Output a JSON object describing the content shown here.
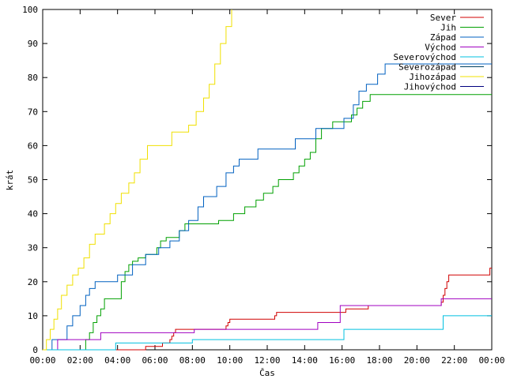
{
  "chart_data": {
    "type": "line",
    "title": "",
    "xlabel": "Čas",
    "ylabel": "krát",
    "xlim": [
      0,
      24
    ],
    "ylim": [
      0,
      100
    ],
    "x_unit": "hours",
    "x_ticks": [
      {
        "value": 0,
        "label": "00:00"
      },
      {
        "value": 2,
        "label": "02:00"
      },
      {
        "value": 4,
        "label": "04:00"
      },
      {
        "value": 6,
        "label": "06:00"
      },
      {
        "value": 8,
        "label": "08:00"
      },
      {
        "value": 10,
        "label": "10:00"
      },
      {
        "value": 12,
        "label": "12:00"
      },
      {
        "value": 14,
        "label": "14:00"
      },
      {
        "value": 16,
        "label": "16:00"
      },
      {
        "value": 18,
        "label": "18:00"
      },
      {
        "value": 20,
        "label": "20:00"
      },
      {
        "value": 22,
        "label": "22:00"
      },
      {
        "value": 24,
        "label": "00:00"
      }
    ],
    "y_ticks": [
      0,
      10,
      20,
      30,
      40,
      50,
      60,
      70,
      80,
      90,
      100
    ],
    "grid": false,
    "legend_position": "top-right",
    "step": true,
    "series": [
      {
        "name": "Sever",
        "color": "#d00000",
        "points": [
          [
            0,
            0
          ],
          [
            5.5,
            0
          ],
          [
            5.5,
            1
          ],
          [
            6.4,
            1
          ],
          [
            6.4,
            2
          ],
          [
            6.8,
            2
          ],
          [
            6.8,
            3
          ],
          [
            6.9,
            3
          ],
          [
            6.9,
            4
          ],
          [
            7,
            4
          ],
          [
            7,
            5
          ],
          [
            7.1,
            5
          ],
          [
            7.1,
            6
          ],
          [
            9.8,
            6
          ],
          [
            9.8,
            7
          ],
          [
            9.9,
            7
          ],
          [
            9.9,
            8
          ],
          [
            10,
            8
          ],
          [
            10,
            9
          ],
          [
            12.4,
            9
          ],
          [
            12.4,
            10
          ],
          [
            12.5,
            10
          ],
          [
            12.5,
            11
          ],
          [
            16.2,
            11
          ],
          [
            16.2,
            12
          ],
          [
            17.4,
            12
          ],
          [
            17.4,
            13
          ],
          [
            21.3,
            13
          ],
          [
            21.3,
            14
          ],
          [
            21.4,
            14
          ],
          [
            21.4,
            16
          ],
          [
            21.5,
            16
          ],
          [
            21.5,
            18
          ],
          [
            21.6,
            18
          ],
          [
            21.6,
            20
          ],
          [
            21.7,
            20
          ],
          [
            21.7,
            22
          ],
          [
            23.9,
            22
          ],
          [
            23.9,
            24
          ],
          [
            24,
            24
          ]
        ]
      },
      {
        "name": "Jih",
        "color": "#00a000",
        "points": [
          [
            0,
            0
          ],
          [
            2.3,
            0
          ],
          [
            2.3,
            3
          ],
          [
            2.5,
            3
          ],
          [
            2.5,
            5
          ],
          [
            2.7,
            5
          ],
          [
            2.7,
            8
          ],
          [
            2.9,
            8
          ],
          [
            2.9,
            10
          ],
          [
            3.1,
            10
          ],
          [
            3.1,
            12
          ],
          [
            3.3,
            12
          ],
          [
            3.3,
            15
          ],
          [
            4.2,
            15
          ],
          [
            4.2,
            20
          ],
          [
            4.4,
            20
          ],
          [
            4.4,
            23
          ],
          [
            4.6,
            23
          ],
          [
            4.6,
            25
          ],
          [
            4.8,
            25
          ],
          [
            4.8,
            26
          ],
          [
            5.1,
            26
          ],
          [
            5.1,
            27
          ],
          [
            5.5,
            27
          ],
          [
            5.5,
            28
          ],
          [
            6.1,
            28
          ],
          [
            6.1,
            30
          ],
          [
            6.3,
            30
          ],
          [
            6.3,
            32
          ],
          [
            6.6,
            32
          ],
          [
            6.6,
            33
          ],
          [
            7.3,
            33
          ],
          [
            7.3,
            35
          ],
          [
            7.6,
            35
          ],
          [
            7.6,
            37
          ],
          [
            9.4,
            37
          ],
          [
            9.4,
            38
          ],
          [
            10.2,
            38
          ],
          [
            10.2,
            40
          ],
          [
            10.8,
            40
          ],
          [
            10.8,
            42
          ],
          [
            11.4,
            42
          ],
          [
            11.4,
            44
          ],
          [
            11.8,
            44
          ],
          [
            11.8,
            46
          ],
          [
            12.3,
            46
          ],
          [
            12.3,
            48
          ],
          [
            12.6,
            48
          ],
          [
            12.6,
            50
          ],
          [
            13.4,
            50
          ],
          [
            13.4,
            52
          ],
          [
            13.7,
            52
          ],
          [
            13.7,
            54
          ],
          [
            14,
            54
          ],
          [
            14,
            56
          ],
          [
            14.3,
            56
          ],
          [
            14.3,
            58
          ],
          [
            14.6,
            58
          ],
          [
            14.6,
            62
          ],
          [
            14.9,
            62
          ],
          [
            14.9,
            65
          ],
          [
            15.5,
            65
          ],
          [
            15.5,
            67
          ],
          [
            16.5,
            67
          ],
          [
            16.5,
            69
          ],
          [
            16.8,
            69
          ],
          [
            16.8,
            71
          ],
          [
            17.1,
            71
          ],
          [
            17.1,
            73
          ],
          [
            17.5,
            73
          ],
          [
            17.5,
            75
          ],
          [
            24,
            75
          ]
        ]
      },
      {
        "name": "Západ",
        "color": "#0060c0",
        "points": [
          [
            0,
            0
          ],
          [
            0.5,
            0
          ],
          [
            0.5,
            3
          ],
          [
            1.3,
            3
          ],
          [
            1.3,
            7
          ],
          [
            1.6,
            7
          ],
          [
            1.6,
            10
          ],
          [
            2,
            10
          ],
          [
            2,
            13
          ],
          [
            2.3,
            13
          ],
          [
            2.3,
            16
          ],
          [
            2.5,
            16
          ],
          [
            2.5,
            18
          ],
          [
            2.8,
            18
          ],
          [
            2.8,
            20
          ],
          [
            4,
            20
          ],
          [
            4,
            22
          ],
          [
            4.8,
            22
          ],
          [
            4.8,
            25
          ],
          [
            5.5,
            25
          ],
          [
            5.5,
            28
          ],
          [
            6.2,
            28
          ],
          [
            6.2,
            30
          ],
          [
            6.8,
            30
          ],
          [
            6.8,
            32
          ],
          [
            7.3,
            32
          ],
          [
            7.3,
            35
          ],
          [
            7.8,
            35
          ],
          [
            7.8,
            38
          ],
          [
            8.3,
            38
          ],
          [
            8.3,
            42
          ],
          [
            8.6,
            42
          ],
          [
            8.6,
            45
          ],
          [
            9.3,
            45
          ],
          [
            9.3,
            48
          ],
          [
            9.8,
            48
          ],
          [
            9.8,
            52
          ],
          [
            10.2,
            52
          ],
          [
            10.2,
            54
          ],
          [
            10.5,
            54
          ],
          [
            10.5,
            56
          ],
          [
            11.5,
            56
          ],
          [
            11.5,
            59
          ],
          [
            13.5,
            59
          ],
          [
            13.5,
            62
          ],
          [
            14.6,
            62
          ],
          [
            14.6,
            65
          ],
          [
            16.1,
            65
          ],
          [
            16.1,
            68
          ],
          [
            16.6,
            68
          ],
          [
            16.6,
            72
          ],
          [
            16.9,
            72
          ],
          [
            16.9,
            76
          ],
          [
            17.3,
            76
          ],
          [
            17.3,
            78
          ],
          [
            17.9,
            78
          ],
          [
            17.9,
            81
          ],
          [
            18.3,
            81
          ],
          [
            18.3,
            84
          ],
          [
            24,
            84
          ]
        ]
      },
      {
        "name": "Východ",
        "color": "#a000c0",
        "points": [
          [
            0,
            0
          ],
          [
            0.8,
            0
          ],
          [
            0.8,
            3
          ],
          [
            3.1,
            3
          ],
          [
            3.1,
            5
          ],
          [
            8.1,
            5
          ],
          [
            8.1,
            6
          ],
          [
            14.7,
            6
          ],
          [
            14.7,
            8
          ],
          [
            15.9,
            8
          ],
          [
            15.9,
            13
          ],
          [
            21.3,
            13
          ],
          [
            21.3,
            15
          ],
          [
            24,
            15
          ]
        ]
      },
      {
        "name": "Severovýchod",
        "color": "#00c0e0",
        "points": [
          [
            0,
            0
          ],
          [
            3.9,
            0
          ],
          [
            3.9,
            2
          ],
          [
            8,
            2
          ],
          [
            8,
            3
          ],
          [
            16.1,
            3
          ],
          [
            16.1,
            6
          ],
          [
            21.4,
            6
          ],
          [
            21.4,
            10
          ],
          [
            24,
            10
          ]
        ]
      },
      {
        "name": "Severozápad",
        "color": "#004060",
        "points": []
      },
      {
        "name": "Jihozápad",
        "color": "#f0e000",
        "points": [
          [
            0,
            0
          ],
          [
            0.2,
            0
          ],
          [
            0.2,
            3
          ],
          [
            0.4,
            3
          ],
          [
            0.4,
            6
          ],
          [
            0.6,
            6
          ],
          [
            0.6,
            9
          ],
          [
            0.8,
            9
          ],
          [
            0.8,
            12
          ],
          [
            1,
            12
          ],
          [
            1,
            16
          ],
          [
            1.3,
            16
          ],
          [
            1.3,
            19
          ],
          [
            1.6,
            19
          ],
          [
            1.6,
            22
          ],
          [
            1.9,
            22
          ],
          [
            1.9,
            24
          ],
          [
            2.2,
            24
          ],
          [
            2.2,
            27
          ],
          [
            2.5,
            27
          ],
          [
            2.5,
            31
          ],
          [
            2.8,
            31
          ],
          [
            2.8,
            34
          ],
          [
            3.3,
            34
          ],
          [
            3.3,
            37
          ],
          [
            3.6,
            37
          ],
          [
            3.6,
            40
          ],
          [
            3.9,
            40
          ],
          [
            3.9,
            43
          ],
          [
            4.2,
            43
          ],
          [
            4.2,
            46
          ],
          [
            4.6,
            46
          ],
          [
            4.6,
            49
          ],
          [
            4.9,
            49
          ],
          [
            4.9,
            52
          ],
          [
            5.2,
            52
          ],
          [
            5.2,
            56
          ],
          [
            5.6,
            56
          ],
          [
            5.6,
            60
          ],
          [
            6.9,
            60
          ],
          [
            6.9,
            64
          ],
          [
            7.8,
            64
          ],
          [
            7.8,
            66
          ],
          [
            8.2,
            66
          ],
          [
            8.2,
            70
          ],
          [
            8.6,
            70
          ],
          [
            8.6,
            74
          ],
          [
            8.9,
            74
          ],
          [
            8.9,
            78
          ],
          [
            9.2,
            78
          ],
          [
            9.2,
            84
          ],
          [
            9.5,
            84
          ],
          [
            9.5,
            90
          ],
          [
            9.8,
            90
          ],
          [
            9.8,
            95
          ],
          [
            10.1,
            95
          ],
          [
            10.1,
            100
          ]
        ]
      },
      {
        "name": "Jihovýchod",
        "color": "#000080",
        "points": []
      }
    ]
  }
}
